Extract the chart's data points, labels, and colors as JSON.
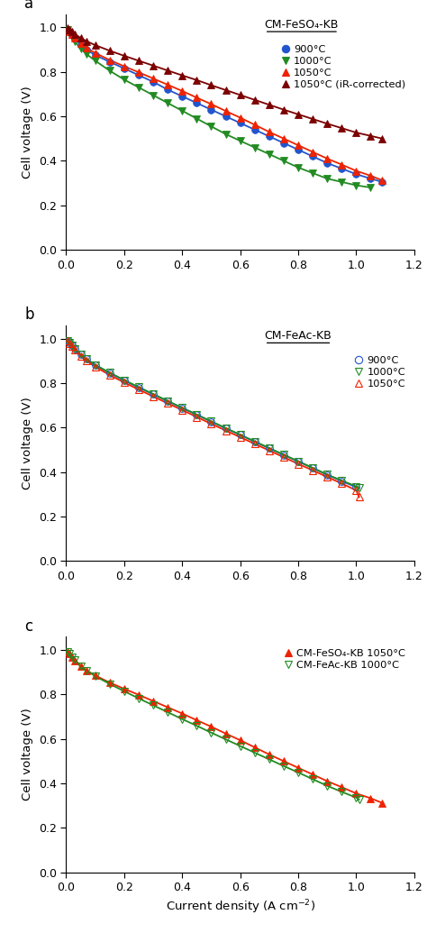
{
  "panel_a": {
    "title": "CM-FeSO₄-KB",
    "label": "a",
    "series": [
      {
        "label": "900°C",
        "color": "#2255cc",
        "marker": "o",
        "filled": true,
        "x": [
          0.005,
          0.01,
          0.02,
          0.03,
          0.05,
          0.07,
          0.1,
          0.15,
          0.2,
          0.25,
          0.3,
          0.35,
          0.4,
          0.45,
          0.5,
          0.55,
          0.6,
          0.65,
          0.7,
          0.75,
          0.8,
          0.85,
          0.9,
          0.95,
          1.0,
          1.05,
          1.09
        ],
        "y": [
          0.99,
          0.98,
          0.965,
          0.95,
          0.92,
          0.9,
          0.875,
          0.845,
          0.815,
          0.785,
          0.755,
          0.72,
          0.69,
          0.66,
          0.63,
          0.6,
          0.57,
          0.54,
          0.51,
          0.48,
          0.45,
          0.42,
          0.39,
          0.365,
          0.34,
          0.32,
          0.305
        ]
      },
      {
        "label": "1000°C",
        "color": "#228B22",
        "marker": "v",
        "filled": true,
        "x": [
          0.005,
          0.01,
          0.02,
          0.03,
          0.05,
          0.07,
          0.1,
          0.15,
          0.2,
          0.25,
          0.3,
          0.35,
          0.4,
          0.45,
          0.5,
          0.55,
          0.6,
          0.65,
          0.7,
          0.75,
          0.8,
          0.85,
          0.9,
          0.95,
          1.0,
          1.05
        ],
        "y": [
          0.99,
          0.975,
          0.955,
          0.935,
          0.905,
          0.88,
          0.85,
          0.805,
          0.765,
          0.73,
          0.695,
          0.66,
          0.625,
          0.59,
          0.555,
          0.52,
          0.49,
          0.46,
          0.43,
          0.4,
          0.37,
          0.345,
          0.32,
          0.305,
          0.29,
          0.28
        ]
      },
      {
        "label": "1050°C",
        "color": "#ee2200",
        "marker": "^",
        "filled": true,
        "x": [
          0.005,
          0.01,
          0.02,
          0.03,
          0.05,
          0.07,
          0.1,
          0.15,
          0.2,
          0.25,
          0.3,
          0.35,
          0.4,
          0.45,
          0.5,
          0.55,
          0.6,
          0.65,
          0.7,
          0.75,
          0.8,
          0.85,
          0.9,
          0.95,
          1.0,
          1.05,
          1.09
        ],
        "y": [
          0.993,
          0.982,
          0.968,
          0.953,
          0.928,
          0.908,
          0.885,
          0.853,
          0.825,
          0.798,
          0.77,
          0.742,
          0.714,
          0.684,
          0.655,
          0.624,
          0.594,
          0.562,
          0.53,
          0.5,
          0.47,
          0.44,
          0.41,
          0.383,
          0.355,
          0.333,
          0.312
        ]
      },
      {
        "label": "1050°C (iR-corrected)",
        "color": "#7B0000",
        "marker": "^",
        "filled": true,
        "x": [
          0.005,
          0.01,
          0.02,
          0.03,
          0.05,
          0.07,
          0.1,
          0.15,
          0.2,
          0.25,
          0.3,
          0.35,
          0.4,
          0.45,
          0.5,
          0.55,
          0.6,
          0.65,
          0.7,
          0.75,
          0.8,
          0.85,
          0.9,
          0.95,
          1.0,
          1.05,
          1.09
        ],
        "y": [
          0.997,
          0.99,
          0.98,
          0.97,
          0.952,
          0.938,
          0.92,
          0.895,
          0.872,
          0.85,
          0.828,
          0.806,
          0.784,
          0.763,
          0.74,
          0.718,
          0.696,
          0.674,
          0.652,
          0.63,
          0.609,
          0.588,
          0.567,
          0.547,
          0.527,
          0.512,
          0.5
        ]
      }
    ]
  },
  "panel_b": {
    "title": "CM-FeAc-KB",
    "label": "b",
    "series": [
      {
        "label": "900°C",
        "color": "#2255cc",
        "marker": "o",
        "filled": false,
        "x": [
          0.005,
          0.01,
          0.02,
          0.03,
          0.05,
          0.07,
          0.1,
          0.15,
          0.2,
          0.25,
          0.3,
          0.35,
          0.4,
          0.45,
          0.5,
          0.55,
          0.6,
          0.65,
          0.7,
          0.75,
          0.8,
          0.85,
          0.9,
          0.95,
          1.0
        ],
        "y": [
          0.992,
          0.984,
          0.97,
          0.955,
          0.928,
          0.908,
          0.882,
          0.845,
          0.812,
          0.78,
          0.75,
          0.718,
          0.688,
          0.658,
          0.627,
          0.597,
          0.567,
          0.537,
          0.507,
          0.477,
          0.448,
          0.418,
          0.388,
          0.36,
          0.332
        ]
      },
      {
        "label": "1000°C",
        "color": "#228B22",
        "marker": "v",
        "filled": false,
        "x": [
          0.005,
          0.01,
          0.02,
          0.03,
          0.05,
          0.07,
          0.1,
          0.15,
          0.2,
          0.25,
          0.3,
          0.35,
          0.4,
          0.45,
          0.5,
          0.55,
          0.6,
          0.65,
          0.7,
          0.75,
          0.8,
          0.85,
          0.9,
          0.95,
          1.0,
          1.01
        ],
        "y": [
          0.992,
          0.983,
          0.969,
          0.954,
          0.928,
          0.908,
          0.882,
          0.847,
          0.814,
          0.782,
          0.751,
          0.72,
          0.689,
          0.659,
          0.628,
          0.598,
          0.568,
          0.538,
          0.508,
          0.478,
          0.449,
          0.419,
          0.389,
          0.362,
          0.336,
          0.328
        ]
      },
      {
        "label": "1050°C",
        "color": "#ee2200",
        "marker": "^",
        "filled": false,
        "x": [
          0.005,
          0.01,
          0.02,
          0.03,
          0.05,
          0.07,
          0.1,
          0.15,
          0.2,
          0.25,
          0.3,
          0.35,
          0.4,
          0.45,
          0.5,
          0.55,
          0.6,
          0.65,
          0.7,
          0.75,
          0.8,
          0.85,
          0.9,
          0.95,
          1.0,
          1.01
        ],
        "y": [
          0.99,
          0.98,
          0.965,
          0.949,
          0.921,
          0.9,
          0.874,
          0.836,
          0.803,
          0.771,
          0.74,
          0.709,
          0.679,
          0.648,
          0.617,
          0.587,
          0.557,
          0.527,
          0.497,
          0.467,
          0.437,
          0.408,
          0.378,
          0.349,
          0.318,
          0.288
        ]
      }
    ]
  },
  "panel_c": {
    "label": "c",
    "series": [
      {
        "label": "CM-FeSO₄-KB 1050°C",
        "color": "#ee2200",
        "marker": "^",
        "filled": true,
        "x": [
          0.005,
          0.01,
          0.02,
          0.03,
          0.05,
          0.07,
          0.1,
          0.15,
          0.2,
          0.25,
          0.3,
          0.35,
          0.4,
          0.45,
          0.5,
          0.55,
          0.6,
          0.65,
          0.7,
          0.75,
          0.8,
          0.85,
          0.9,
          0.95,
          1.0,
          1.05,
          1.09
        ],
        "y": [
          0.993,
          0.982,
          0.968,
          0.953,
          0.928,
          0.908,
          0.885,
          0.853,
          0.825,
          0.798,
          0.77,
          0.742,
          0.714,
          0.684,
          0.655,
          0.624,
          0.594,
          0.562,
          0.53,
          0.5,
          0.47,
          0.44,
          0.41,
          0.383,
          0.355,
          0.333,
          0.312
        ]
      },
      {
        "label": "CM-FeAc-KB 1000°C",
        "color": "#228B22",
        "marker": "v",
        "filled": false,
        "x": [
          0.005,
          0.01,
          0.02,
          0.03,
          0.05,
          0.07,
          0.1,
          0.15,
          0.2,
          0.25,
          0.3,
          0.35,
          0.4,
          0.45,
          0.5,
          0.55,
          0.6,
          0.65,
          0.7,
          0.75,
          0.8,
          0.85,
          0.9,
          0.95,
          1.0,
          1.01
        ],
        "y": [
          0.992,
          0.983,
          0.969,
          0.954,
          0.928,
          0.908,
          0.882,
          0.847,
          0.814,
          0.782,
          0.751,
          0.72,
          0.689,
          0.659,
          0.628,
          0.598,
          0.568,
          0.538,
          0.508,
          0.478,
          0.449,
          0.419,
          0.389,
          0.362,
          0.336,
          0.328
        ]
      }
    ]
  },
  "ylabel": "Cell voltage (V)",
  "xlabel": "Current density (A cm$^{-2}$)",
  "xlim": [
    0,
    1.2
  ],
  "ylim": [
    0.0,
    1.06
  ],
  "xticks": [
    0.0,
    0.2,
    0.4,
    0.6,
    0.8,
    1.0,
    1.2
  ],
  "yticks": [
    0.0,
    0.2,
    0.4,
    0.6,
    0.8,
    1.0
  ],
  "bg_color": "#ffffff"
}
